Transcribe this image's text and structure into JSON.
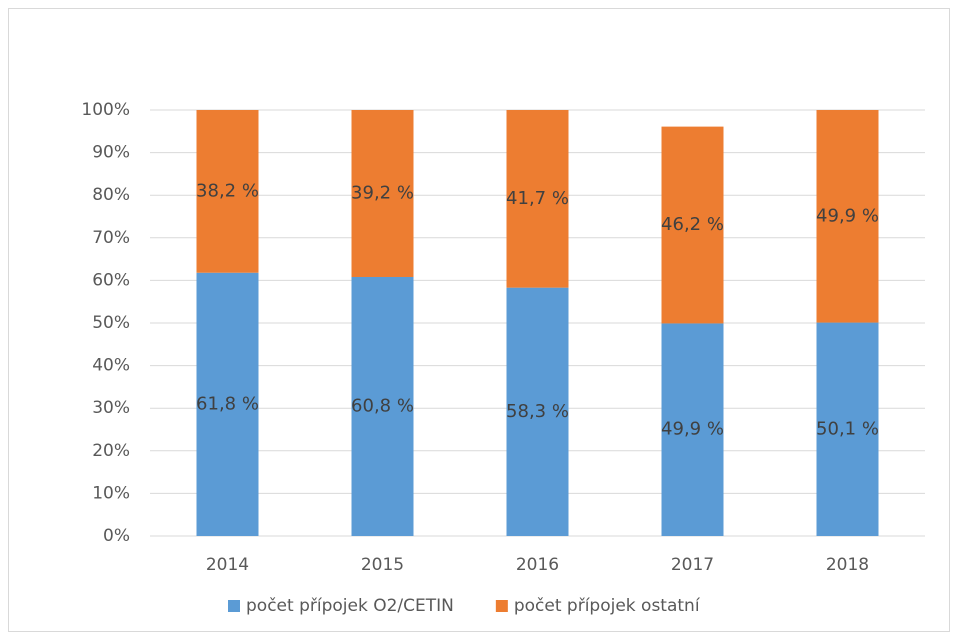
{
  "chart_data": {
    "type": "bar",
    "stacked": true,
    "categories": [
      "2014",
      "2015",
      "2016",
      "2017",
      "2018"
    ],
    "series": [
      {
        "name": "počet přípojek O2/CETIN",
        "color": "#5b9bd5",
        "values": [
          61.8,
          60.8,
          58.3,
          49.9,
          50.1
        ],
        "value_labels": [
          "61,8 %",
          "60,8 %",
          "58,3 %",
          "49,9 %",
          "50,1 %"
        ]
      },
      {
        "name": "počet přípojek ostatní",
        "color": "#ed7d31",
        "values": [
          38.2,
          39.2,
          41.7,
          46.2,
          49.9
        ],
        "value_labels": [
          "38,2 %",
          "39,2 %",
          "41,7 %",
          "46,2 %",
          "49,9 %"
        ]
      }
    ],
    "ylim": [
      0,
      100
    ],
    "yticks": [
      {
        "value": 0,
        "label": "0%"
      },
      {
        "value": 10,
        "label": "10%"
      },
      {
        "value": 20,
        "label": "20%"
      },
      {
        "value": 30,
        "label": "30%"
      },
      {
        "value": 40,
        "label": "40%"
      },
      {
        "value": 50,
        "label": "50%"
      },
      {
        "value": 60,
        "label": "60%"
      },
      {
        "value": 70,
        "label": "70%"
      },
      {
        "value": 80,
        "label": "80%"
      },
      {
        "value": 90,
        "label": "90%"
      },
      {
        "value": 100,
        "label": "100%"
      }
    ],
    "grid": true,
    "legend": "bottom"
  }
}
